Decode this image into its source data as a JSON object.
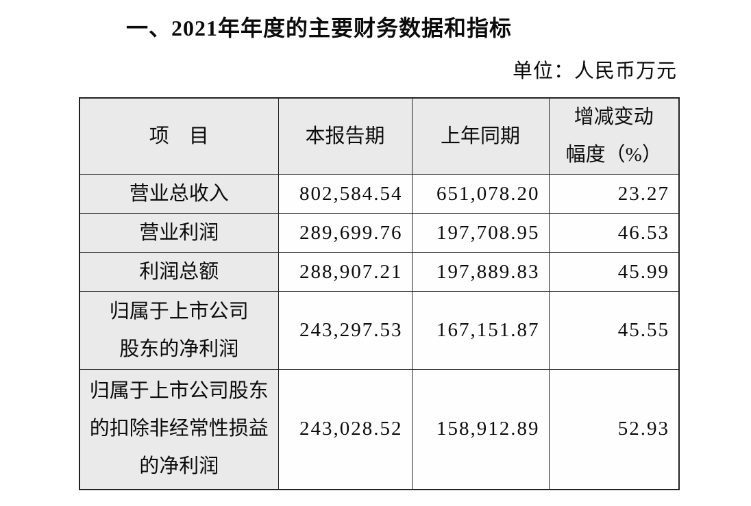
{
  "document": {
    "title": "一、2021年年度的主要财务数据和指标",
    "unit_label": "单位：人民币万元"
  },
  "table": {
    "headers": {
      "item": "项　目",
      "current_period": "本报告期",
      "prior_period": "上年同期",
      "change": "增减变动\n幅度（%）"
    },
    "rows": [
      {
        "item": "营业总收入",
        "current_period": "802,584.54",
        "prior_period": "651,078.20",
        "change": "23.27"
      },
      {
        "item": "营业利润",
        "current_period": "289,699.76",
        "prior_period": "197,708.95",
        "change": "46.53"
      },
      {
        "item": "利润总额",
        "current_period": "288,907.21",
        "prior_period": "197,889.83",
        "change": "45.99"
      },
      {
        "item": "归属于上市公司\n股东的净利润",
        "current_period": "243,297.53",
        "prior_period": "167,151.87",
        "change": "45.55"
      },
      {
        "item": "归属于上市公司股东\n的扣除非经常性损益\n的净利润",
        "current_period": "243,028.52",
        "prior_period": "158,912.89",
        "change": "52.93"
      }
    ]
  },
  "colors": {
    "header_fill": "#eaeaea",
    "border": "#222222",
    "text": "#0b0b0b",
    "background": "#ffffff"
  }
}
